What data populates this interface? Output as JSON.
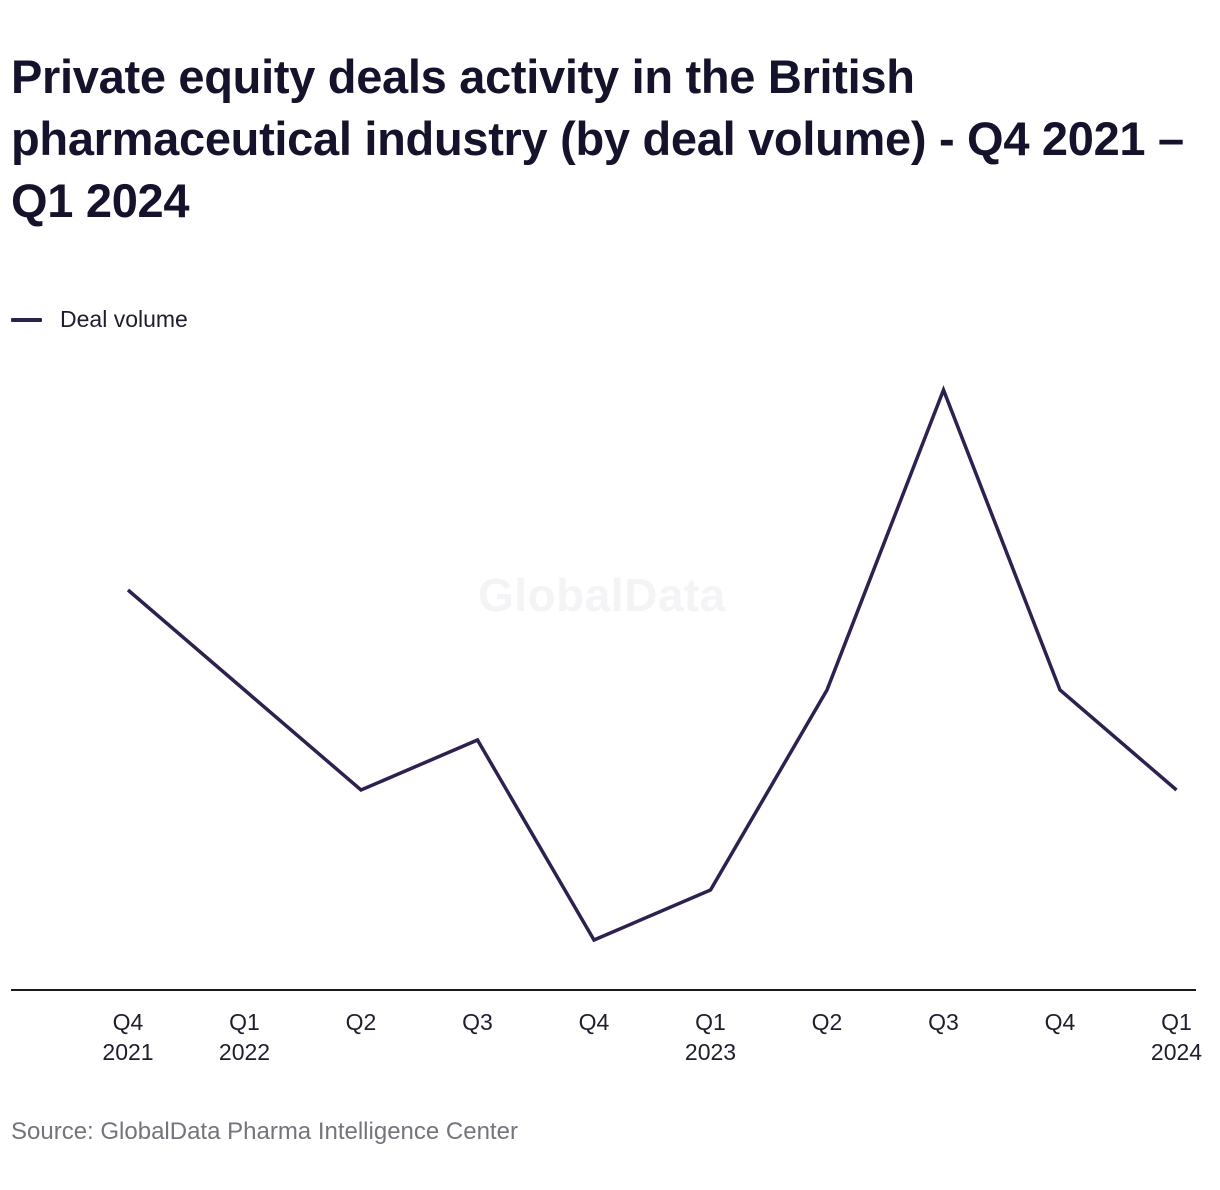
{
  "chart_data": {
    "type": "line",
    "title": "Private equity deals activity in the British pharmaceutical industry (by deal volume) - Q4 2021 – Q1 2024",
    "categories": [
      [
        "Q4",
        "2021"
      ],
      [
        "Q1",
        "2022"
      ],
      [
        "Q2",
        ""
      ],
      [
        "Q3",
        ""
      ],
      [
        "Q4",
        ""
      ],
      [
        "Q1",
        "2023"
      ],
      [
        "Q2",
        ""
      ],
      [
        "Q3",
        ""
      ],
      [
        "Q4",
        ""
      ],
      [
        "Q1",
        "2024"
      ]
    ],
    "series": [
      {
        "name": "Deal volume",
        "color": "#2e2150",
        "values": [
          8,
          6,
          4,
          5,
          1,
          2,
          6,
          12,
          6,
          4
        ]
      }
    ],
    "xlabel": "",
    "ylabel": "",
    "ylim": [
      0,
      12
    ],
    "grid": false,
    "y_axis_visible": false,
    "legend_position": "top-left",
    "source": "Source: GlobalData Pharma Intelligence Center",
    "watermark": "GlobalData"
  }
}
